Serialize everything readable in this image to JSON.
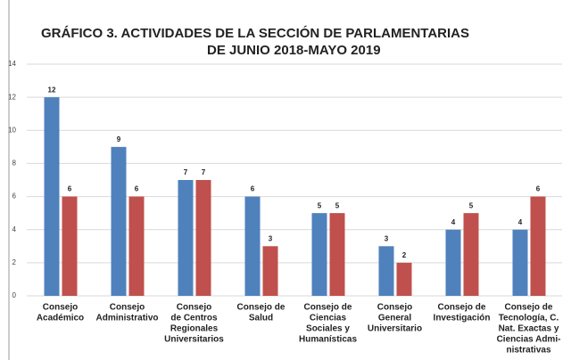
{
  "chart_data": {
    "type": "bar",
    "title": [
      "GRÁFICO 3. ACTIVIDADES DE LA SECCIÓN DE PARLAMENTARIAS",
      "DE JUNIO 2018-MAYO 2019"
    ],
    "categories": [
      [
        "Consejo",
        "Académico"
      ],
      [
        "Consejo",
        "Administrativo"
      ],
      [
        "Consejo",
        "de Centros",
        "Regionales",
        "Universitarios"
      ],
      [
        "Consejo de",
        "Salud"
      ],
      [
        "Consejo de",
        "Ciencias",
        "Sociales y",
        "Humanísticas"
      ],
      [
        "Consejo",
        "General",
        "Universitario"
      ],
      [
        "Consejo de",
        "Investigación"
      ],
      [
        "Consejo de",
        "Tecnología, C.",
        "Nat. Exactas y",
        "Ciencias Admi-",
        "nistrativas"
      ]
    ],
    "series": [
      {
        "color": "#4f81bd",
        "values": [
          12,
          9,
          7,
          6,
          5,
          3,
          4,
          4
        ]
      },
      {
        "color": "#c0504d",
        "values": [
          6,
          6,
          7,
          3,
          5,
          2,
          5,
          6
        ]
      }
    ],
    "ylim": [
      0,
      14
    ],
    "yticks": [
      0,
      2,
      4,
      6,
      8,
      10,
      12,
      14
    ],
    "grid": true
  }
}
